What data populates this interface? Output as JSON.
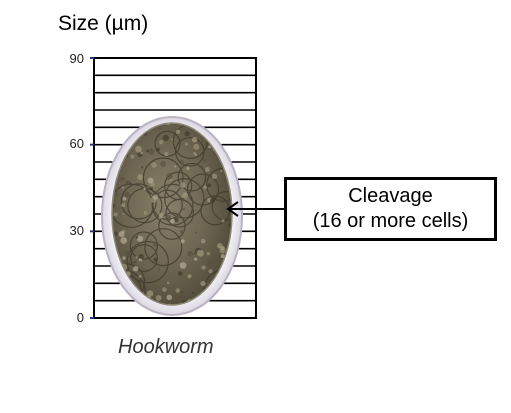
{
  "axis": {
    "title": "Size (µm)",
    "ticks": [
      {
        "label": "90",
        "value": 90
      },
      {
        "label": "60",
        "value": 60
      },
      {
        "label": "30",
        "value": 30
      },
      {
        "label": "0",
        "value": 0
      }
    ],
    "range": [
      0,
      90
    ],
    "gridline_step": 6
  },
  "specimen": {
    "name": "Hookworm",
    "description_icon": "hookworm-egg-image"
  },
  "callout": {
    "line1": "Cleavage",
    "line2": "(16 or more cells)"
  },
  "colors": {
    "grid": "#000000",
    "tick_mark": "#1f3a8a",
    "egg_shell": "#e6e2ec",
    "egg_body": "#6e6650"
  }
}
